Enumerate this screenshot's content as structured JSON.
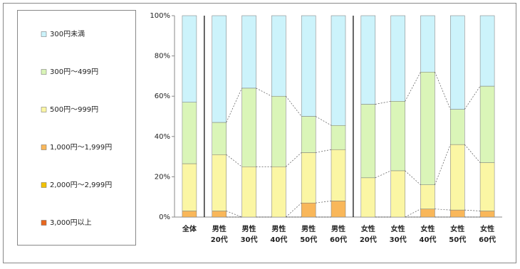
{
  "chart_data": {
    "type": "stacked_bar_100",
    "categories": [
      [
        "全体"
      ],
      [
        "男性",
        "20代"
      ],
      [
        "男性",
        "30代"
      ],
      [
        "男性",
        "40代"
      ],
      [
        "男性",
        "50代"
      ],
      [
        "男性",
        "60代"
      ],
      [
        "女性",
        "20代"
      ],
      [
        "女性",
        "30代"
      ],
      [
        "女性",
        "40代"
      ],
      [
        "女性",
        "50代"
      ],
      [
        "女性",
        "60代"
      ]
    ],
    "series": [
      {
        "name": "300円未満",
        "color": "#ccf3fb",
        "values": [
          43,
          53,
          36,
          40,
          50,
          54.5,
          44,
          42.5,
          28,
          46.5,
          35
        ]
      },
      {
        "name": "300円～499円",
        "color": "#daf5b8",
        "values": [
          30.5,
          16,
          39,
          35,
          18,
          12,
          36.5,
          34.5,
          56,
          17.5,
          38
        ]
      },
      {
        "name": "500円～999円",
        "color": "#fbf6a4",
        "values": [
          23.5,
          28,
          25,
          25,
          25,
          25.5,
          19.5,
          23,
          12,
          32.5,
          24
        ]
      },
      {
        "name": "1,000円～1,999円",
        "color": "#f9b75a",
        "values": [
          3,
          3,
          0,
          0,
          7,
          8,
          0,
          0,
          4,
          3.5,
          3
        ]
      },
      {
        "name": "2,000円～2,999円",
        "color": "#f2c200",
        "values": [
          0,
          0,
          0,
          0,
          0,
          0,
          0,
          0,
          0,
          0,
          0
        ]
      },
      {
        "name": "3,000円以上",
        "color": "#e8671e",
        "values": [
          0,
          0,
          0,
          0,
          0,
          0,
          0,
          0,
          0,
          0,
          0
        ]
      }
    ],
    "ylim": [
      0,
      100
    ],
    "yticks": [
      {
        "value": 0,
        "label": "0%"
      },
      {
        "value": 20,
        "label": "20%"
      },
      {
        "value": 40,
        "label": "40%"
      },
      {
        "value": 60,
        "label": "60%"
      },
      {
        "value": 80,
        "label": "80%"
      },
      {
        "value": 100,
        "label": "100%"
      }
    ]
  }
}
